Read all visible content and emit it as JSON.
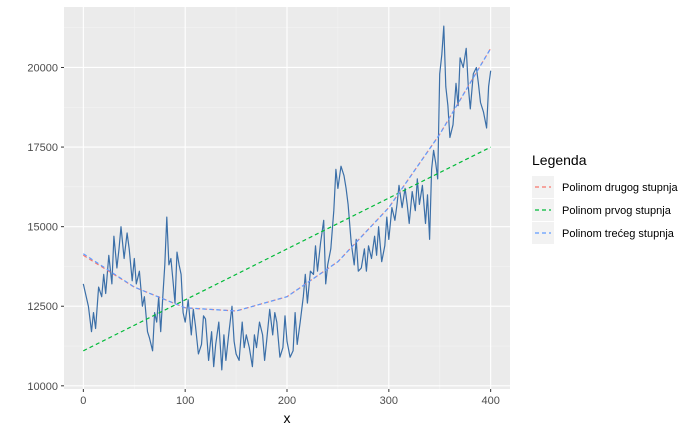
{
  "chart_data": {
    "type": "line",
    "title": "",
    "xlabel": "x",
    "ylabel": "",
    "xlim": [
      -19,
      419
    ],
    "ylim": [
      9900,
      21900
    ],
    "x_ticks": [
      0,
      100,
      200,
      300,
      400
    ],
    "x_tick_labels": [
      "0",
      "100",
      "200",
      "300",
      "400"
    ],
    "y_ticks": [
      10000,
      12500,
      15000,
      17500,
      20000
    ],
    "y_tick_labels": [
      "10000",
      "12500",
      "15000",
      "17500",
      "20000"
    ],
    "grid": true,
    "panel_background": "#ebebeb",
    "legend": {
      "title": "Legenda",
      "position": "right",
      "entries": [
        {
          "label": "Polinom drugog stupnja",
          "color": "#f8766d"
        },
        {
          "label": "Polinom prvog stupnja",
          "color": "#00ba38"
        },
        {
          "label": "Polinom trećeg stupnja",
          "color": "#619cff"
        }
      ]
    },
    "series": [
      {
        "role": "data",
        "color": "#3b6fa8",
        "x": [
          0,
          5,
          8,
          10,
          12,
          15,
          18,
          20,
          22,
          25,
          28,
          30,
          33,
          35,
          37,
          40,
          43,
          45,
          48,
          50,
          52,
          55,
          58,
          60,
          63,
          65,
          68,
          70,
          72,
          74,
          76,
          78,
          80,
          82,
          84,
          86,
          88,
          90,
          92,
          94,
          96,
          98,
          100,
          103,
          106,
          108,
          110,
          113,
          116,
          118,
          120,
          123,
          126,
          128,
          130,
          133,
          136,
          138,
          140,
          143,
          146,
          148,
          150,
          153,
          156,
          158,
          160,
          163,
          166,
          168,
          170,
          173,
          176,
          178,
          180,
          183,
          186,
          188,
          190,
          193,
          196,
          198,
          200,
          203,
          206,
          208,
          210,
          213,
          216,
          218,
          220,
          223,
          226,
          228,
          230,
          233,
          236,
          238,
          240,
          243,
          246,
          248,
          250,
          253,
          256,
          258,
          260,
          263,
          266,
          268,
          270,
          273,
          276,
          278,
          280,
          283,
          286,
          288,
          290,
          293,
          296,
          298,
          300,
          303,
          306,
          308,
          310,
          313,
          316,
          318,
          320,
          323,
          326,
          328,
          330,
          333,
          336,
          338,
          340,
          342,
          344,
          346,
          348,
          350,
          352,
          354,
          356,
          358,
          360,
          363,
          366,
          368,
          370,
          373,
          376,
          378,
          380,
          383,
          386,
          388,
          390,
          393,
          396,
          398,
          400
        ],
        "y": [
          13200,
          12500,
          11700,
          12300,
          11800,
          13100,
          12800,
          13500,
          12900,
          14100,
          13200,
          14700,
          13700,
          14300,
          15000,
          14000,
          14800,
          14300,
          13300,
          14000,
          13200,
          13600,
          12500,
          12800,
          11700,
          11500,
          11100,
          12300,
          12000,
          12800,
          11700,
          12800,
          13800,
          15300,
          13800,
          14000,
          13300,
          12600,
          14200,
          13800,
          13500,
          12300,
          12000,
          12700,
          11600,
          12400,
          11900,
          11000,
          11300,
          12200,
          12100,
          10800,
          11700,
          10600,
          11300,
          12000,
          10500,
          11600,
          10800,
          11700,
          12500,
          11400,
          11000,
          10800,
          12000,
          11200,
          11600,
          11200,
          10600,
          11600,
          11200,
          12000,
          11600,
          10800,
          11400,
          12400,
          11600,
          12300,
          12000,
          10900,
          11200,
          12200,
          11400,
          10900,
          11100,
          12300,
          11300,
          12000,
          12800,
          13500,
          12600,
          13600,
          13500,
          14400,
          13600,
          14500,
          15200,
          13200,
          13800,
          14300,
          15500,
          16800,
          16200,
          16900,
          16600,
          16200,
          15700,
          14500,
          13800,
          14600,
          13600,
          13700,
          14300,
          13600,
          14400,
          14000,
          14700,
          14100,
          15000,
          13900,
          14400,
          15300,
          14600,
          15600,
          15200,
          15700,
          16300,
          15600,
          16200,
          15700,
          15100,
          16100,
          15500,
          16500,
          15700,
          16300,
          15100,
          16000,
          14600,
          16800,
          17400,
          17000,
          16500,
          19800,
          20400,
          21300,
          19400,
          18800,
          17800,
          18200,
          19500,
          18800,
          20300,
          20000,
          20600,
          19400,
          18700,
          19800,
          20000,
          19500,
          18900,
          18600,
          18100,
          19400,
          19900
        ]
      },
      {
        "role": "fit",
        "name": "Polinom prvog stupnja",
        "color": "#00ba38",
        "dash": true,
        "x": [
          0,
          400
        ],
        "y": [
          11100,
          17500
        ]
      },
      {
        "role": "fit",
        "name": "Polinom drugog stupnja",
        "color": "#f8766d",
        "dash": true,
        "x": [
          0,
          50,
          100,
          150,
          200,
          250,
          300,
          350,
          400
        ],
        "y": [
          14100,
          13100,
          12450,
          12350,
          12800,
          13900,
          15600,
          17900,
          20600
        ]
      },
      {
        "role": "fit",
        "name": "Polinom trećeg stupnja",
        "color": "#619cff",
        "dash": true,
        "x": [
          0,
          50,
          100,
          150,
          200,
          250,
          300,
          350,
          400
        ],
        "y": [
          14150,
          13100,
          12450,
          12350,
          12800,
          13900,
          15600,
          17900,
          20600
        ]
      }
    ]
  }
}
